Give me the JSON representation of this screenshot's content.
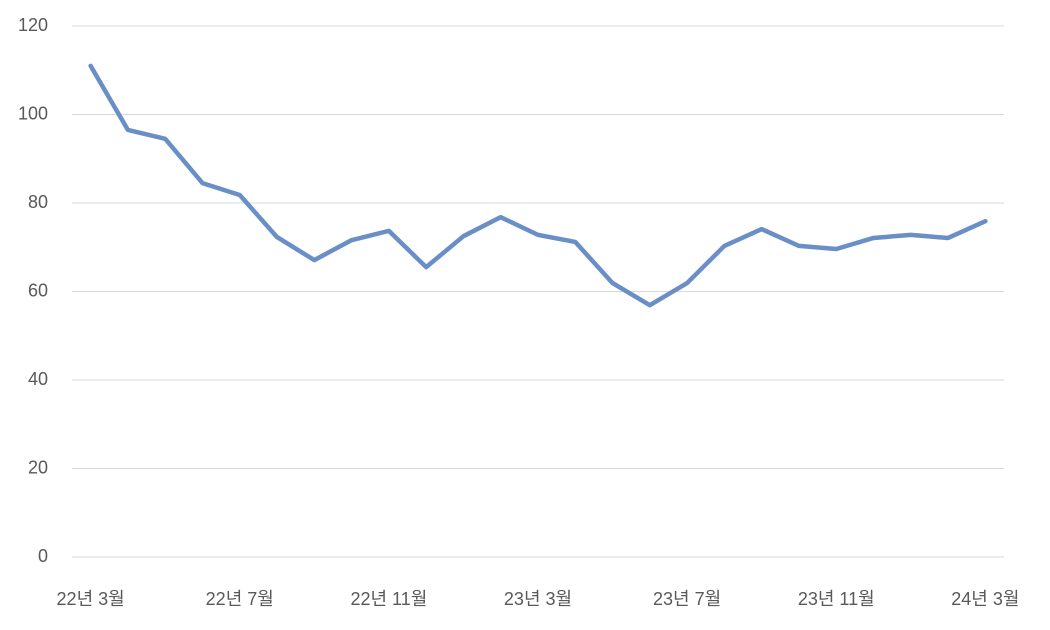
{
  "chart_data": {
    "type": "line",
    "categories": [
      "22년 3월",
      null,
      null,
      null,
      "22년 7월",
      null,
      null,
      null,
      "22년 11월",
      null,
      null,
      null,
      "23년 3월",
      null,
      null,
      null,
      "23년 7월",
      null,
      null,
      null,
      "23년 11월",
      null,
      null,
      null,
      "24년 3월"
    ],
    "series": [
      {
        "color": "#6a8fc7",
        "values": [
          111,
          96.5,
          94.5,
          84.5,
          81.8,
          72.3,
          67.1,
          71.6,
          73.7,
          65.5,
          72.5,
          76.8,
          72.8,
          71.2,
          61.9,
          56.9,
          61.9,
          70.3,
          74.1,
          70.3,
          69.6,
          72.1,
          72.8,
          72.1,
          75.9
        ]
      }
    ],
    "ylim": [
      0,
      120
    ],
    "yticks": [
      0,
      20,
      40,
      60,
      80,
      100,
      120
    ],
    "grid": true
  }
}
